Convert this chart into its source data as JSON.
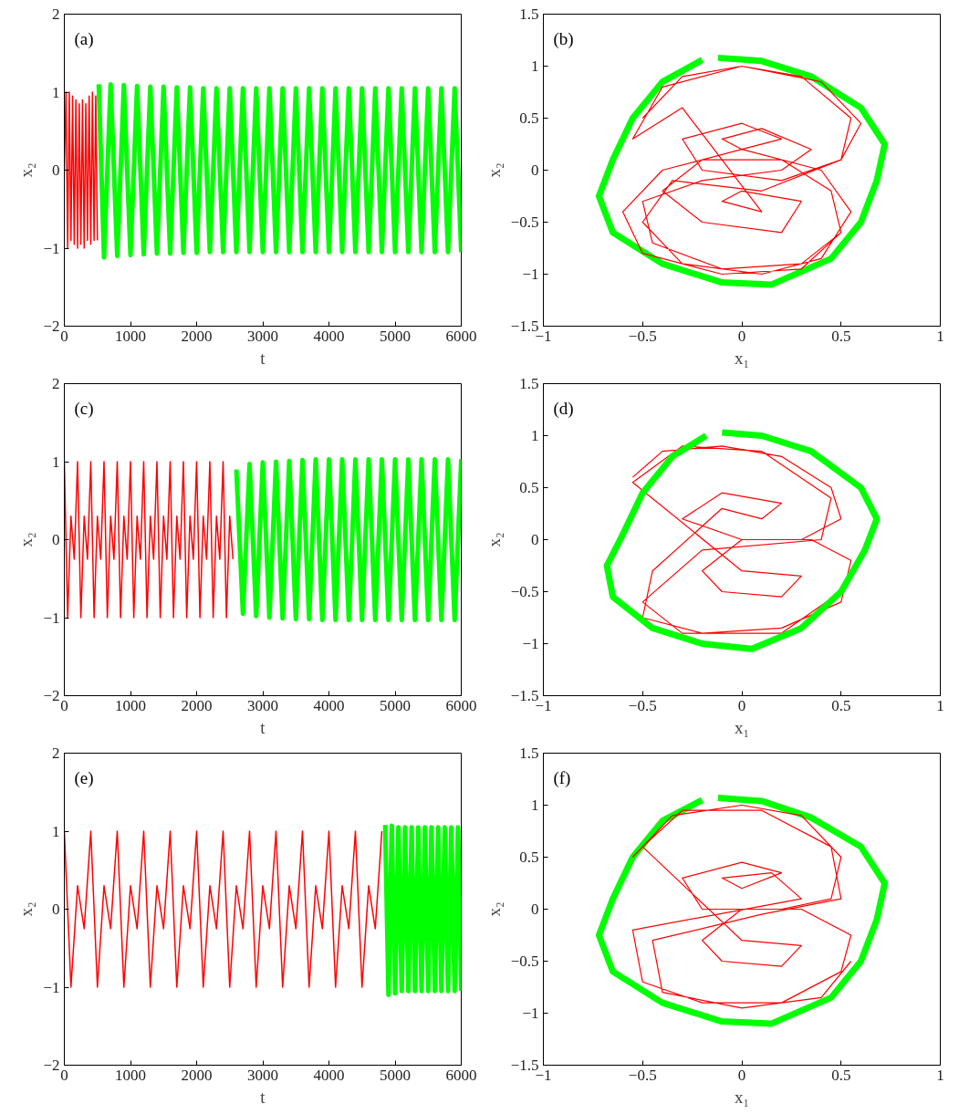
{
  "chart_data": [
    {
      "type": "line",
      "annotations": [
        "(a)"
      ],
      "xlabel": "t",
      "ylabel": "x₂",
      "xlim": [
        0,
        6000
      ],
      "ylim": [
        -2,
        2
      ],
      "xticks": [
        0,
        1000,
        2000,
        3000,
        4000,
        5000,
        6000
      ],
      "yticks": [
        -2,
        -1,
        0,
        1,
        2
      ],
      "series": [
        {
          "color": "#ff0000",
          "x": [
            0,
            25,
            50,
            75,
            100,
            125,
            150,
            175,
            200,
            225,
            250,
            275,
            300,
            325,
            350,
            375,
            400,
            425,
            450,
            475,
            500
          ],
          "values": [
            0,
            1,
            -1,
            1,
            -0.9,
            0.95,
            -0.95,
            0.9,
            -1,
            0.85,
            -0.95,
            0.9,
            -1,
            0.85,
            -0.9,
            0.95,
            -0.95,
            1,
            -0.9,
            0.95,
            -0.9
          ]
        },
        {
          "color": "#00ff00",
          "x": [
            520,
            600,
            700,
            800,
            900,
            1000,
            1100,
            1200,
            1300,
            1400,
            1500,
            1600,
            1700,
            1800,
            1900,
            2000,
            2100,
            2200,
            2300,
            2400,
            2500,
            2600,
            2700,
            2800,
            2900,
            3000,
            3100,
            3200,
            3300,
            3400,
            3500,
            3600,
            3700,
            3800,
            3900,
            4000,
            4100,
            4200,
            4300,
            4400,
            4500,
            4600,
            4700,
            4800,
            4900,
            5000,
            5100,
            5200,
            5300,
            5400,
            5500,
            5600,
            5700,
            5800,
            5900,
            6000
          ],
          "values": [
            1.1,
            -1.12,
            1.1,
            -1.1,
            1.09,
            -1.09,
            1.08,
            -1.08,
            1.07,
            -1.07,
            1.07,
            -1.07,
            1.06,
            -1.06,
            1.06,
            -1.06,
            1.05,
            -1.05,
            1.05,
            -1.05,
            1.05,
            -1.05,
            1.05,
            -1.05,
            1.05,
            -1.05,
            1.05,
            -1.05,
            1.05,
            -1.05,
            1.05,
            -1.05,
            1.05,
            -1.05,
            1.05,
            -1.05,
            1.05,
            -1.05,
            1.05,
            -1.05,
            1.05,
            -1.05,
            1.05,
            -1.05,
            1.05,
            -1.05,
            1.05,
            -1.05,
            1.05,
            -1.05,
            1.05,
            -1.05,
            1.05,
            -1.05,
            1.05,
            -1.05
          ]
        }
      ]
    },
    {
      "type": "line",
      "annotations": [
        "(b)"
      ],
      "xlabel": "x₁",
      "ylabel": "x₂",
      "xlim": [
        -1,
        1
      ],
      "ylim": [
        -1.5,
        1.5
      ],
      "xticks": [
        -1,
        -0.5,
        0,
        0.5,
        1
      ],
      "yticks": [
        -1.5,
        -1,
        -0.5,
        0,
        0.5,
        1,
        1.5
      ],
      "series": [
        {
          "color": "#00ff00",
          "x": [
            -0.12,
            0.1,
            0.35,
            0.6,
            0.72,
            0.68,
            0.6,
            0.45,
            0.15,
            -0.1,
            -0.4,
            -0.65,
            -0.72,
            -0.65,
            -0.55,
            -0.4,
            -0.2
          ],
          "values": [
            1.08,
            1.05,
            0.9,
            0.6,
            0.25,
            -0.1,
            -0.5,
            -0.85,
            -1.1,
            -1.08,
            -0.9,
            -0.6,
            -0.25,
            0.1,
            0.5,
            0.85,
            1.06
          ]
        },
        {
          "color": "#ff0000",
          "x": [
            -0.5,
            -0.3,
            0,
            0.3,
            0.55,
            0.5,
            0.2,
            -0.2,
            -0.3,
            0,
            0.2,
            0,
            -0.1,
            0.1,
            0.35,
            0.2,
            -0.2,
            -0.5,
            -0.45,
            -0.1,
            0.3,
            0.5,
            0.45,
            0.2,
            -0.2,
            -0.4,
            -0.2,
            0.2,
            0.3,
            0,
            -0.1,
            0.1,
            -0.3,
            -0.55,
            -0.4,
            0,
            0.4,
            0.6,
            0.5,
            0.1,
            -0.35,
            -0.5,
            -0.3,
            0.1,
            0.4,
            0.55,
            0.4,
            0,
            -0.4,
            -0.6,
            -0.5,
            -0.1,
            0.3,
            0.5
          ],
          "values": [
            0.5,
            0.9,
            1.0,
            0.9,
            0.5,
            0.1,
            -0.1,
            0.0,
            0.3,
            0.45,
            0.3,
            0.2,
            0.3,
            0.4,
            0.2,
            0.0,
            -0.1,
            -0.3,
            -0.7,
            -0.95,
            -0.9,
            -0.6,
            -0.2,
            0.1,
            0.1,
            -0.2,
            -0.5,
            -0.6,
            -0.3,
            -0.2,
            -0.3,
            -0.4,
            0.6,
            0.3,
            0.8,
            1.0,
            0.85,
            0.45,
            0.1,
            -0.2,
            -0.1,
            -0.5,
            -0.9,
            -1.0,
            -0.85,
            -0.4,
            0.0,
            0.2,
            0.0,
            -0.4,
            -0.8,
            -1.0,
            -0.95,
            -0.6
          ]
        }
      ]
    },
    {
      "type": "line",
      "annotations": [
        "(c)"
      ],
      "xlabel": "t",
      "ylabel": "x₂",
      "xlim": [
        0,
        6000
      ],
      "ylim": [
        -2,
        2
      ],
      "xticks": [
        0,
        1000,
        2000,
        3000,
        4000,
        5000,
        6000
      ],
      "yticks": [
        -2,
        -1,
        0,
        1,
        2
      ],
      "series": [
        {
          "color": "#ff0000",
          "x": [
            0,
            50,
            100,
            150,
            200,
            250,
            300,
            350,
            400,
            450,
            500,
            550,
            600,
            650,
            700,
            750,
            800,
            850,
            900,
            950,
            1000,
            1050,
            1100,
            1150,
            1200,
            1250,
            1300,
            1350,
            1400,
            1450,
            1500,
            1550,
            1600,
            1650,
            1700,
            1750,
            1800,
            1850,
            1900,
            1950,
            2000,
            2050,
            2100,
            2150,
            2200,
            2250,
            2300,
            2350,
            2400,
            2450,
            2500,
            2550
          ],
          "values": [
            1,
            -1,
            0.3,
            -0.25,
            1,
            -1,
            0.3,
            -0.25,
            1,
            -1,
            0.3,
            -0.25,
            1,
            -1,
            0.3,
            -0.25,
            1,
            -1,
            0.3,
            -0.25,
            1,
            -1,
            0.3,
            -0.25,
            1,
            -1,
            0.3,
            -0.25,
            1,
            -1,
            0.3,
            -0.25,
            1,
            -1,
            0.3,
            -0.25,
            1,
            -1,
            0.3,
            -0.25,
            1,
            -1,
            0.3,
            -0.25,
            1,
            -1,
            0.3,
            -0.25,
            1,
            -1,
            0.3,
            -0.25
          ]
        },
        {
          "color": "#00ff00",
          "x": [
            2600,
            2700,
            2800,
            2900,
            3000,
            3100,
            3200,
            3300,
            3400,
            3500,
            3600,
            3700,
            3800,
            3900,
            4000,
            4100,
            4200,
            4300,
            4400,
            4500,
            4600,
            4700,
            4800,
            4900,
            5000,
            5100,
            5200,
            5300,
            5400,
            5500,
            5600,
            5700,
            5800,
            5900,
            6000
          ],
          "values": [
            0.9,
            -0.95,
            0.97,
            -0.98,
            0.99,
            -1.0,
            1.0,
            -1.01,
            1.01,
            -1.02,
            1.02,
            -1.02,
            1.03,
            -1.03,
            1.03,
            -1.03,
            1.03,
            -1.03,
            1.03,
            -1.03,
            1.03,
            -1.03,
            1.03,
            -1.03,
            1.03,
            -1.03,
            1.03,
            -1.03,
            1.03,
            -1.03,
            1.03,
            -1.03,
            1.03,
            -1.03,
            1.03
          ]
        }
      ]
    },
    {
      "type": "line",
      "annotations": [
        "(d)"
      ],
      "xlabel": "x₁",
      "ylabel": "x₂",
      "xlim": [
        -1,
        1
      ],
      "ylim": [
        -1.5,
        1.5
      ],
      "xticks": [
        -1,
        -0.5,
        0,
        0.5,
        1
      ],
      "yticks": [
        -1.5,
        -1,
        -0.5,
        0,
        0.5,
        1,
        1.5
      ],
      "series": [
        {
          "color": "#ff0000",
          "x": [
            -0.55,
            -0.4,
            -0.1,
            0.2,
            0.45,
            0.5,
            0.3,
            0,
            -0.3,
            -0.1,
            0.2,
            0.1,
            -0.1,
            -0.45,
            -0.5,
            -0.2,
            0.2,
            0.5,
            0.55,
            0.35,
            0,
            -0.2,
            -0.1,
            0.2,
            0.3,
            0,
            -0.55,
            -0.3,
            0.1,
            0.45,
            0.4,
            -0.2,
            -0.5,
            -0.3,
            0.2,
            0.5
          ],
          "values": [
            0.6,
            0.85,
            0.9,
            0.8,
            0.5,
            0.2,
            0.0,
            0.0,
            0.2,
            0.45,
            0.35,
            0.2,
            0.3,
            -0.3,
            -0.75,
            -0.9,
            -0.85,
            -0.6,
            -0.2,
            0.0,
            0.0,
            -0.3,
            -0.5,
            -0.55,
            -0.35,
            -0.3,
            0.55,
            0.9,
            0.85,
            0.4,
            0.0,
            -0.1,
            -0.6,
            -0.9,
            -0.9,
            -0.5
          ]
        },
        {
          "color": "#00ff00",
          "x": [
            -0.1,
            0.1,
            0.35,
            0.6,
            0.68,
            0.62,
            0.5,
            0.3,
            0.05,
            -0.2,
            -0.45,
            -0.65,
            -0.68,
            -0.6,
            -0.5,
            -0.35,
            -0.18
          ],
          "values": [
            1.03,
            1.0,
            0.85,
            0.5,
            0.2,
            -0.1,
            -0.5,
            -0.85,
            -1.05,
            -1.0,
            -0.85,
            -0.55,
            -0.25,
            0.05,
            0.45,
            0.8,
            1.0
          ]
        }
      ]
    },
    {
      "type": "line",
      "annotations": [
        "(e)"
      ],
      "xlabel": "t",
      "ylabel": "x₂",
      "xlim": [
        0,
        6000
      ],
      "ylim": [
        -2,
        2
      ],
      "xticks": [
        0,
        1000,
        2000,
        3000,
        4000,
        5000,
        6000
      ],
      "yticks": [
        -2,
        -1,
        0,
        1,
        2
      ],
      "series": [
        {
          "color": "#ff0000",
          "x": [
            0,
            100,
            200,
            300,
            400,
            500,
            600,
            700,
            800,
            900,
            1000,
            1100,
            1200,
            1300,
            1400,
            1500,
            1600,
            1700,
            1800,
            1900,
            2000,
            2100,
            2200,
            2300,
            2400,
            2500,
            2600,
            2700,
            2800,
            2900,
            3000,
            3100,
            3200,
            3300,
            3400,
            3500,
            3600,
            3700,
            3800,
            3900,
            4000,
            4100,
            4200,
            4300,
            4400,
            4500,
            4600,
            4700,
            4800
          ],
          "values": [
            1,
            -1,
            0.3,
            -0.25,
            1,
            -1,
            0.3,
            -0.25,
            1,
            -1,
            0.3,
            -0.25,
            1,
            -1,
            0.3,
            -0.25,
            1,
            -1,
            0.3,
            -0.25,
            1,
            -1,
            0.3,
            -0.25,
            1,
            -1,
            0.3,
            -0.25,
            1,
            -1,
            0.3,
            -0.25,
            1,
            -1,
            0.3,
            -0.25,
            1,
            -1,
            0.3,
            -0.25,
            1,
            -1,
            0.3,
            -0.25,
            1,
            -1,
            0.3,
            -0.25,
            1
          ]
        },
        {
          "color": "#00ff00",
          "x": [
            4850,
            4900,
            4950,
            5000,
            5050,
            5100,
            5150,
            5200,
            5250,
            5300,
            5350,
            5400,
            5450,
            5500,
            5550,
            5600,
            5650,
            5700,
            5750,
            5800,
            5850,
            5900,
            5950,
            6000
          ],
          "values": [
            1.08,
            -1.1,
            1.07,
            -1.08,
            1.05,
            -1.05,
            1.05,
            -1.05,
            1.05,
            -1.05,
            1.05,
            -1.05,
            1.05,
            -1.05,
            1.05,
            -1.05,
            1.05,
            -1.05,
            1.05,
            -1.05,
            1.05,
            -1.05,
            1.05,
            -1.05
          ]
        }
      ]
    },
    {
      "type": "line",
      "annotations": [
        "(f)"
      ],
      "xlabel": "x₁",
      "ylabel": "x₂",
      "xlim": [
        -1,
        1
      ],
      "ylim": [
        -1.5,
        1.5
      ],
      "xticks": [
        -1,
        -0.5,
        0,
        0.5,
        1
      ],
      "yticks": [
        -1.5,
        -1,
        -0.5,
        0,
        0.5,
        1,
        1.5
      ],
      "series": [
        {
          "color": "#00ff00",
          "x": [
            -0.12,
            0.1,
            0.35,
            0.6,
            0.72,
            0.68,
            0.6,
            0.45,
            0.15,
            -0.1,
            -0.4,
            -0.65,
            -0.72,
            -0.65,
            -0.55,
            -0.4,
            -0.2
          ],
          "values": [
            1.07,
            1.04,
            0.88,
            0.6,
            0.25,
            -0.1,
            -0.5,
            -0.85,
            -1.1,
            -1.08,
            -0.9,
            -0.6,
            -0.25,
            0.1,
            0.5,
            0.85,
            1.05
          ]
        },
        {
          "color": "#ff0000",
          "x": [
            -0.55,
            -0.35,
            0,
            0.3,
            0.5,
            0.45,
            0.2,
            -0.2,
            -0.3,
            0,
            0.2,
            0,
            -0.1,
            0.15,
            0.3,
            -0.55,
            -0.5,
            -0.2,
            0.2,
            0.5,
            0.55,
            0.3,
            0,
            -0.2,
            -0.1,
            0.2,
            0.3,
            0,
            -0.5,
            -0.3,
            0.1,
            0.45,
            0.5,
            0.1,
            -0.45,
            -0.4,
            0,
            0.4,
            0.55
          ],
          "values": [
            0.5,
            0.9,
            1.0,
            0.9,
            0.5,
            0.1,
            0.0,
            0.0,
            0.3,
            0.45,
            0.35,
            0.2,
            0.3,
            0.35,
            0.1,
            -0.2,
            -0.7,
            -0.9,
            -0.9,
            -0.6,
            -0.25,
            0.0,
            0.0,
            -0.3,
            -0.5,
            -0.55,
            -0.35,
            -0.3,
            0.6,
            0.95,
            0.95,
            0.6,
            0.1,
            -0.05,
            -0.3,
            -0.8,
            -0.95,
            -0.85,
            -0.5
          ]
        }
      ]
    }
  ]
}
